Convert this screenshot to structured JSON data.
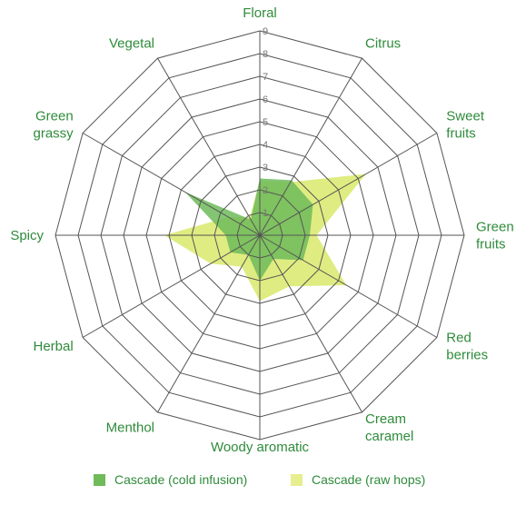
{
  "chart_data": {
    "type": "radar",
    "axes": [
      "Floral",
      "Citrus",
      "Sweet fruits",
      "Green fruits",
      "Red berries",
      "Cream caramel",
      "Woody aromatic",
      "Menthol",
      "Herbal",
      "Spicy",
      "Green grassy",
      "Vegetal"
    ],
    "axis_label_lines": [
      [
        "Floral"
      ],
      [
        "Citrus"
      ],
      [
        "Sweet",
        "fruits"
      ],
      [
        "Green",
        "fruits"
      ],
      [
        "Red",
        "berries"
      ],
      [
        "Cream",
        "caramel"
      ],
      [
        "Woody aromatic"
      ],
      [
        "Menthol"
      ],
      [
        "Herbal"
      ],
      [
        "Spicy"
      ],
      [
        "Green",
        "grassy"
      ],
      [
        "Vegetal"
      ]
    ],
    "range": [
      0,
      9
    ],
    "ticks": [
      "1",
      "2",
      "3",
      "4",
      "5",
      "6",
      "7",
      "8",
      "9"
    ],
    "series": [
      {
        "name": "Cascade (cold infusion)",
        "color": "#6fbb5a",
        "values": [
          2.5,
          2.8,
          2.7,
          2.2,
          2.2,
          1.2,
          2.0,
          1.0,
          1.5,
          1.5,
          3.8,
          0.8
        ]
      },
      {
        "name": "Cascade (raw hops)",
        "color": "#d9e96b",
        "values": [
          2.4,
          2.7,
          5.4,
          2.5,
          4.4,
          2.6,
          2.9,
          1.6,
          2.5,
          4.2,
          1.6,
          0.9
        ]
      }
    ],
    "grid": true,
    "legend_position": "bottom"
  }
}
